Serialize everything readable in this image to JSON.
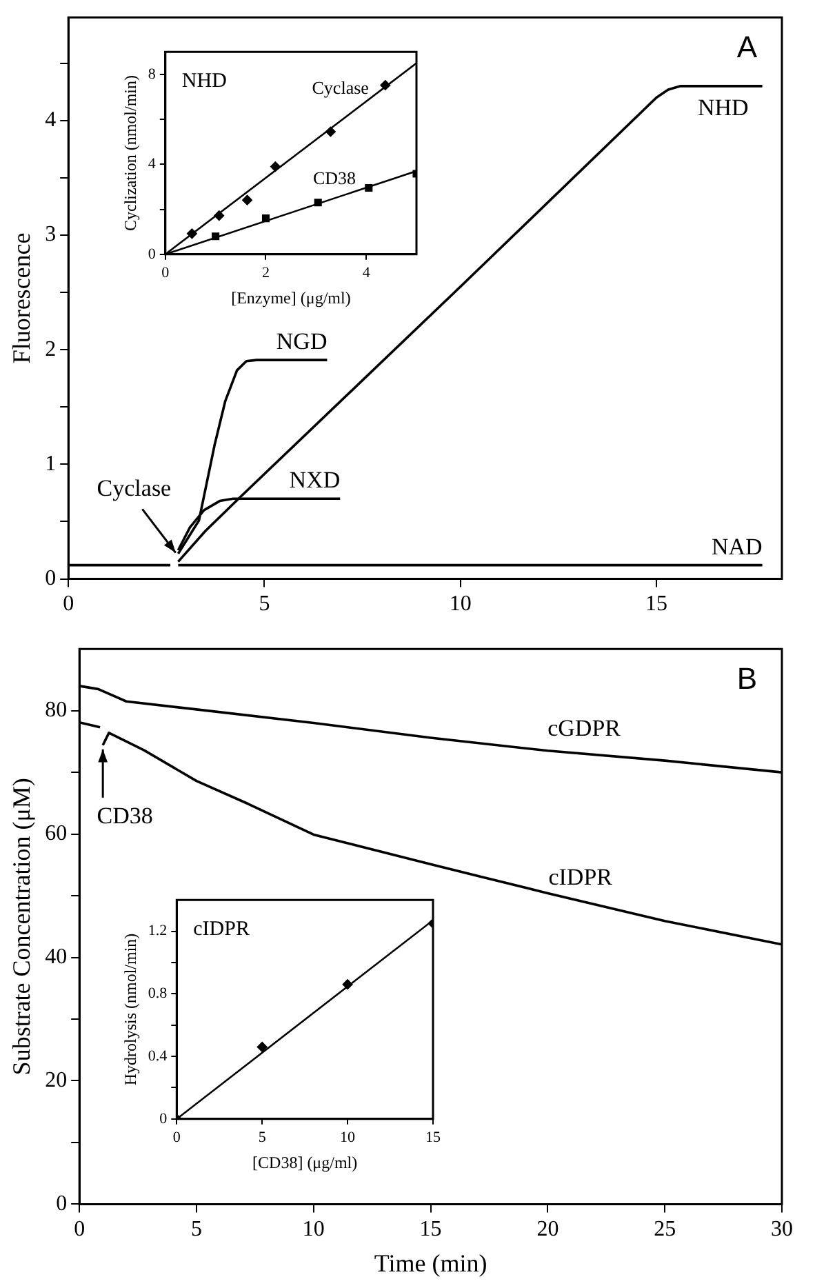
{
  "chart_data": [
    {
      "type": "line",
      "ylabel": "Fluorescence",
      "xlim": [
        0,
        18.2
      ],
      "ylim": [
        0,
        4.9
      ],
      "xticks": [
        0,
        5,
        10,
        15
      ],
      "yticks": [
        0,
        {
          "value": 0.5,
          "label": null
        },
        1,
        {
          "value": 1.5,
          "label": null
        },
        2,
        {
          "value": 2.5,
          "label": null
        },
        3,
        {
          "value": 3.5,
          "label": null
        },
        4,
        {
          "value": 4.5,
          "label": null
        }
      ],
      "marker": "none",
      "annotations": [
        "A",
        {
          "text": "Cyclase",
          "x": 2.8,
          "y": 0.2
        }
      ],
      "series": [
        {
          "name": "NGD",
          "color": "#000000",
          "x": [
            2.8,
            3.33,
            3.73,
            4.0,
            4.3,
            4.54,
            4.8,
            6.6
          ],
          "values": [
            0.22,
            0.51,
            1.17,
            1.55,
            1.82,
            1.9,
            1.91,
            1.91
          ]
        },
        {
          "name": "NXD",
          "color": "#000000",
          "x": [
            2.8,
            3.1,
            3.46,
            3.86,
            4.2,
            5.0,
            6.93
          ],
          "values": [
            0.25,
            0.45,
            0.6,
            0.68,
            0.7,
            0.7,
            0.7
          ]
        },
        {
          "name": "NHD",
          "color": "#000000",
          "x": [
            2.8,
            3.5,
            4.4,
            10,
            15,
            15.3,
            15.6,
            17.7
          ],
          "values": [
            0.15,
            0.42,
            0.72,
            2.55,
            4.2,
            4.27,
            4.3,
            4.3
          ]
        },
        {
          "name": "NAD",
          "color": "#000000",
          "x": [
            0,
            1,
            2,
            2.6,
            2.7,
            2.8,
            10,
            17.7
          ],
          "values": [
            0.12,
            0.12,
            0.12,
            0.12,
            null,
            0.12,
            0.12,
            0.12
          ]
        }
      ]
    },
    {
      "type": "scatter",
      "xlabel": "[Enzyme] (μg/ml)",
      "ylabel": "Cyclization (nmol/min)",
      "xlim": [
        0,
        5
      ],
      "ylim": [
        0,
        9
      ],
      "xticks": [
        0,
        2,
        4
      ],
      "yticks": [
        0,
        {
          "value": 2,
          "label": null
        },
        4,
        {
          "value": 6,
          "label": null
        },
        8
      ],
      "annotations": [
        "NHD"
      ],
      "series": [
        {
          "name": "Cyclase",
          "color": "#000000",
          "marker": "diamond",
          "x": [
            0.53,
            1.07,
            1.63,
            2.19,
            3.29,
            4.38
          ],
          "values": [
            0.92,
            1.72,
            2.41,
            3.9,
            5.45,
            7.52
          ]
        },
        {
          "name": "CD38",
          "color": "#000000",
          "marker": "square",
          "x": [
            1,
            2,
            3.04,
            4.05,
            5
          ],
          "values": [
            0.8,
            1.6,
            2.3,
            2.95,
            3.58
          ]
        },
        {
          "type": "line",
          "color": "#000000",
          "marker": "none",
          "x": [
            0,
            5
          ],
          "values": [
            0,
            8.5
          ]
        },
        {
          "type": "line",
          "color": "#000000",
          "marker": "none",
          "x": [
            0,
            5
          ],
          "values": [
            0,
            3.7
          ]
        }
      ]
    },
    {
      "type": "line",
      "xlabel": "Time (min)",
      "ylabel": "Substrate Concentration (μM)",
      "xlim": [
        0,
        30
      ],
      "ylim": [
        0,
        90
      ],
      "xticks": [
        0,
        5,
        10,
        15,
        20,
        25,
        30
      ],
      "yticks": [
        0,
        {
          "value": 10,
          "label": null
        },
        20,
        {
          "value": 30,
          "label": null
        },
        40,
        {
          "value": 50,
          "label": null
        },
        60,
        {
          "value": 70,
          "label": null
        },
        80
      ],
      "marker": "none",
      "annotations": [
        "B",
        {
          "text": "CD38",
          "x": 1,
          "y": 74.4
        }
      ],
      "series": [
        {
          "name": "cGDPR",
          "color": "#000000",
          "x": [
            0,
            0.8,
            2,
            5,
            10,
            15,
            20,
            25,
            30
          ],
          "values": [
            84,
            83.5,
            81.5,
            80.2,
            78,
            75.6,
            73.5,
            71.9,
            70
          ]
        },
        {
          "name": "cIDPR",
          "color": "#000000",
          "x": [
            0,
            0.88,
            0.95,
            1,
            1.26,
            2.75,
            5,
            7.2,
            10,
            15.1,
            20,
            25,
            30
          ],
          "values": [
            78.1,
            77.3,
            null,
            74.4,
            76.4,
            73.6,
            68.6,
            64.9,
            59.9,
            55,
            50.4,
            45.9,
            42.1
          ]
        }
      ]
    },
    {
      "type": "scatter",
      "xlabel": "[CD38] (μg/ml)",
      "ylabel": "Hydrolysis (nmol/min)",
      "xlim": [
        0,
        15
      ],
      "ylim": [
        0,
        1.4
      ],
      "xticks": [
        0,
        5,
        10,
        15
      ],
      "yticks": [
        0,
        {
          "value": 0.2,
          "label": null
        },
        0.4,
        {
          "value": 0.6,
          "label": null
        },
        0.8,
        {
          "value": 1,
          "label": null
        },
        1.2
      ],
      "annotations": [
        "cIDPR"
      ],
      "series": [
        {
          "color": "#000000",
          "marker": "diamond",
          "x": [
            0,
            5,
            10,
            15
          ],
          "values": [
            0,
            0.46,
            0.86,
            1.25
          ]
        },
        {
          "type": "line",
          "color": "#000000",
          "marker": "none",
          "x": [
            0,
            15
          ],
          "values": [
            0,
            1.27
          ]
        }
      ]
    }
  ]
}
